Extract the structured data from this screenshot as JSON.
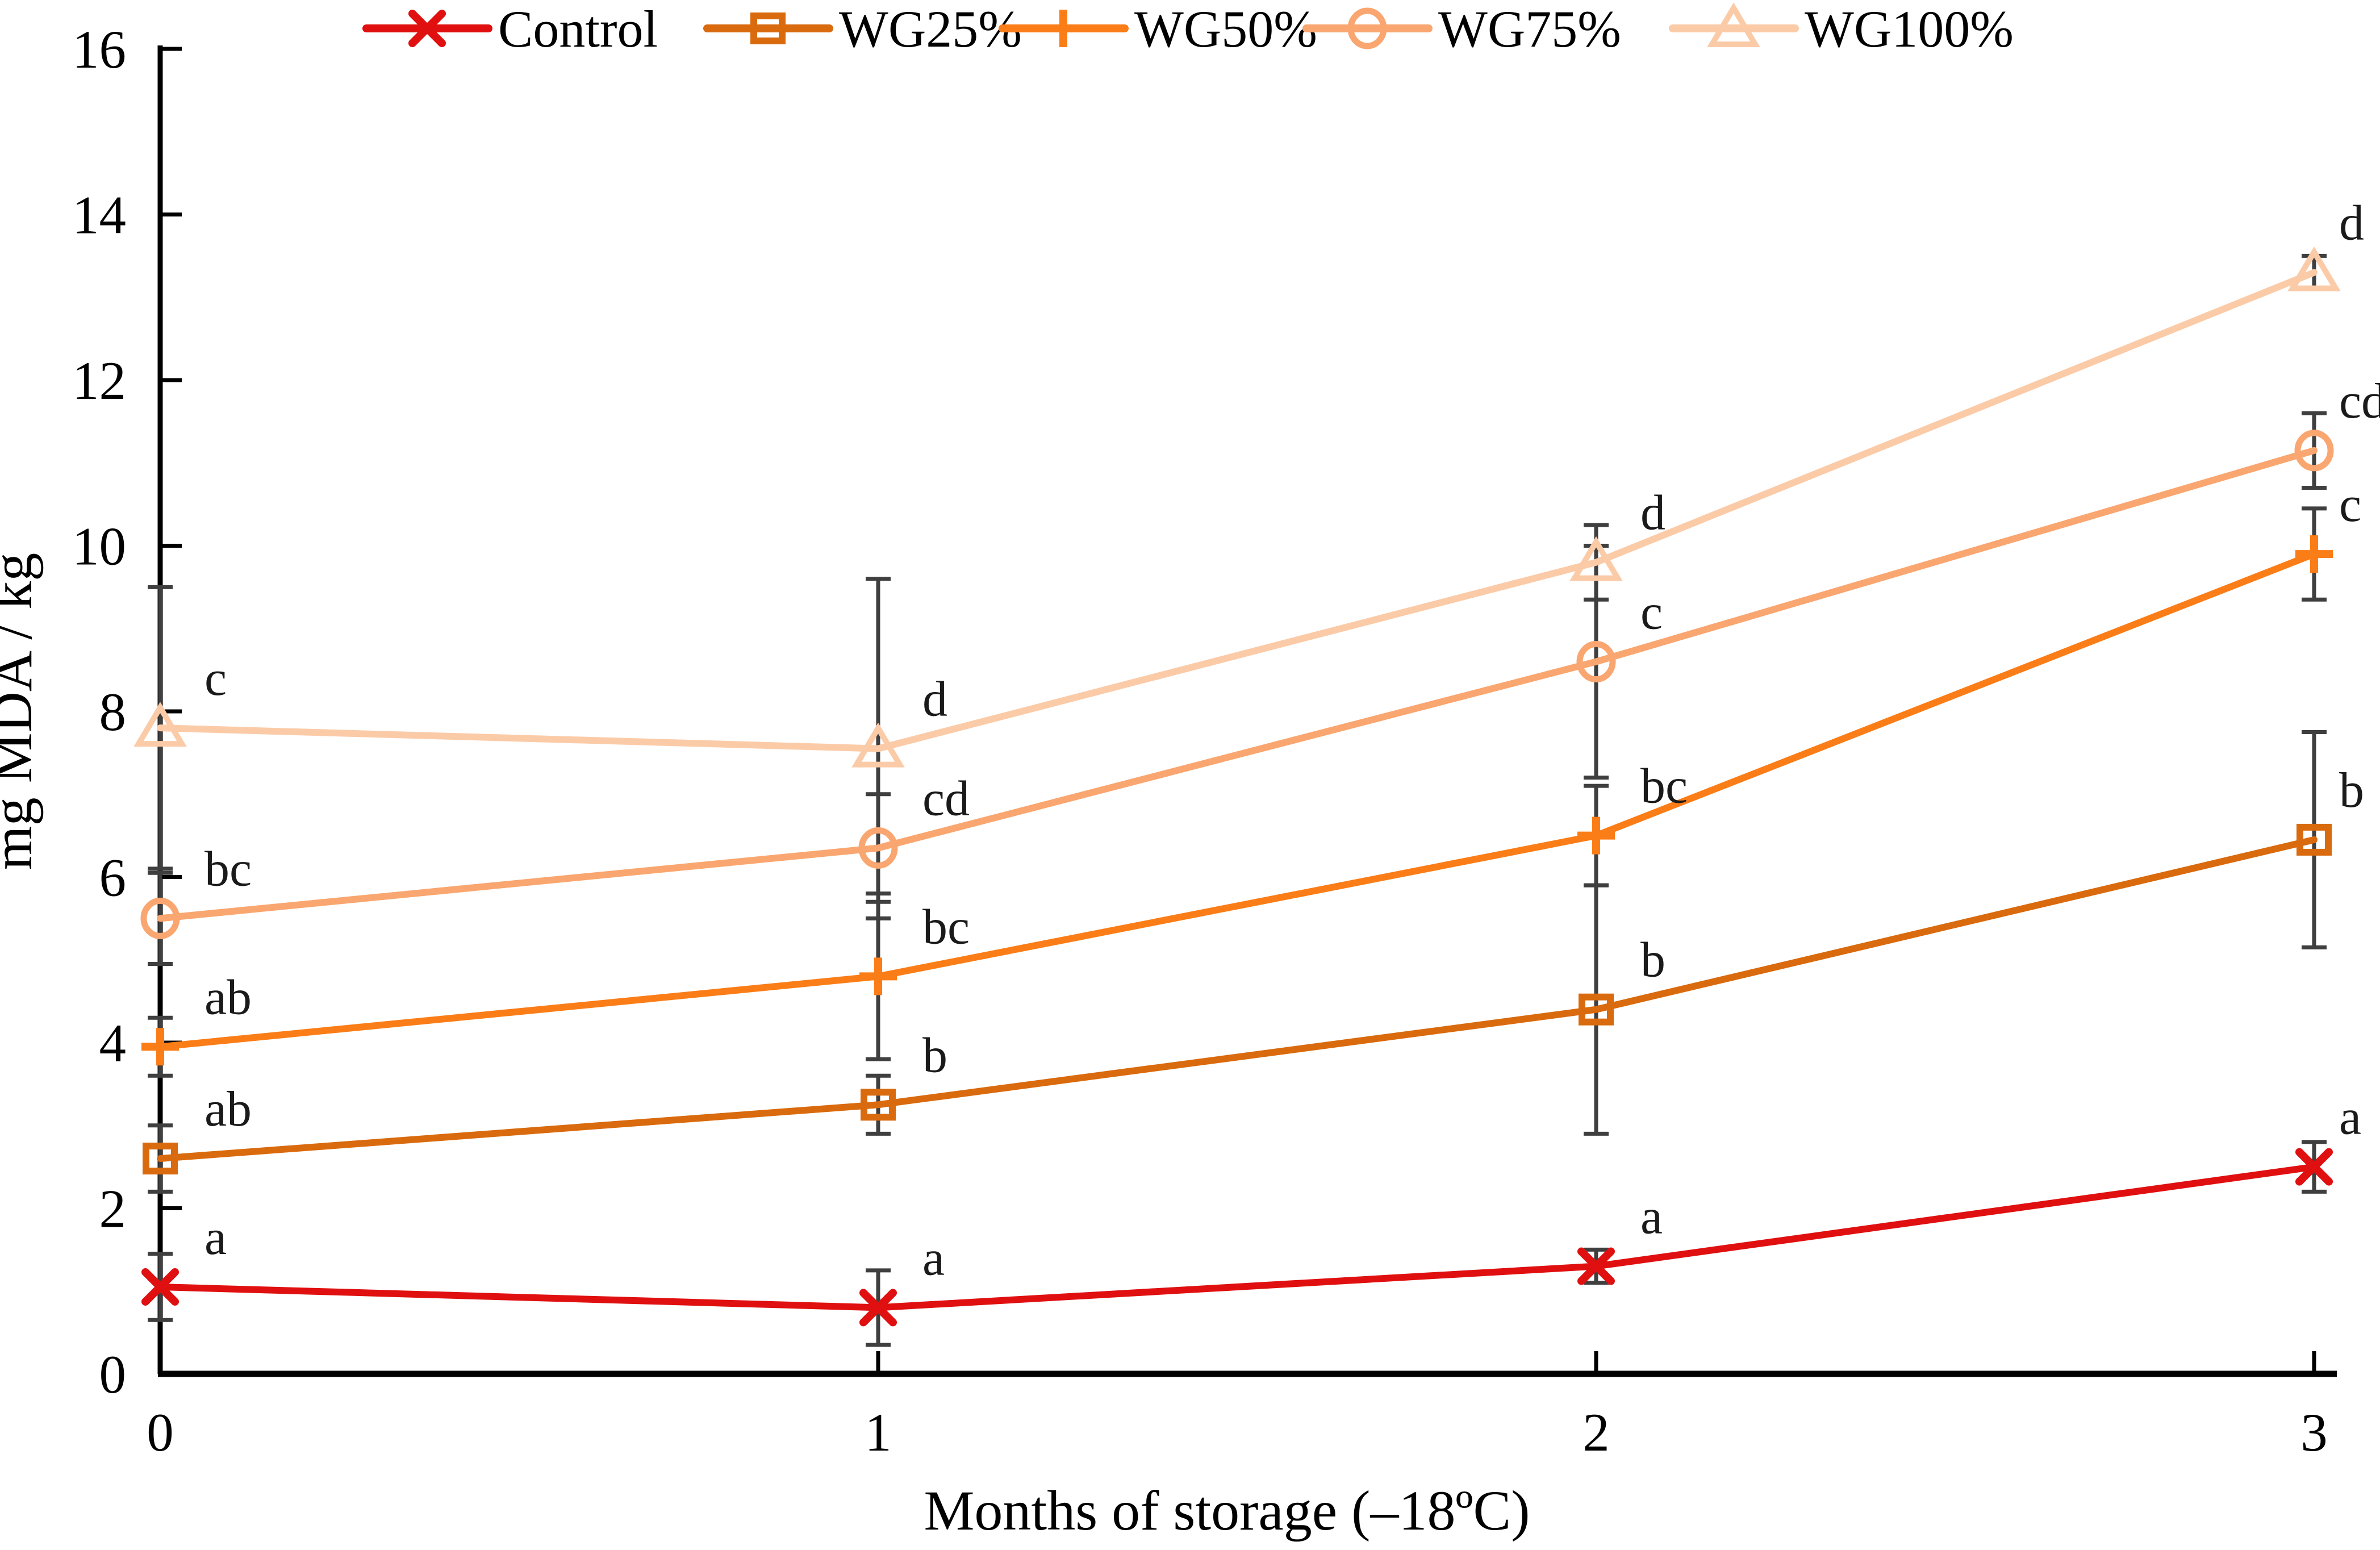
{
  "chart_data": {
    "type": "line",
    "title": "",
    "xlabel": "Months of storage (–18ºC)",
    "ylabel": "mg MDA / kg",
    "x": [
      0,
      1,
      2,
      3
    ],
    "x_tick_labels": [
      "0",
      "1",
      "2",
      "3"
    ],
    "y_ticks": [
      0,
      2,
      4,
      6,
      8,
      10,
      12,
      14,
      16
    ],
    "ylim": [
      0,
      16
    ],
    "grid": false,
    "legend_position": "top",
    "axis_color": "#000000",
    "error_bar_color": "#3F3F3F",
    "series": [
      {
        "name": "Control",
        "color": "#E01010",
        "marker": "x",
        "values": [
          1.05,
          0.8,
          1.3,
          2.5
        ],
        "errors": [
          0.4,
          0.45,
          0.2,
          0.3
        ],
        "letters": [
          "a",
          "a",
          "a",
          "a"
        ]
      },
      {
        "name": "WG25%",
        "color": "#D96A0D",
        "marker": "square",
        "values": [
          2.6,
          3.25,
          4.4,
          6.45
        ],
        "errors": [
          0.4,
          0.35,
          1.5,
          1.3
        ],
        "letters": [
          "ab",
          "b",
          "b",
          "b"
        ]
      },
      {
        "name": "WG50%",
        "color": "#FB7D17",
        "marker": "plus",
        "values": [
          3.95,
          4.8,
          6.5,
          9.9
        ],
        "errors": [
          0.35,
          1.0,
          0.6,
          0.55
        ],
        "letters": [
          "ab",
          "bc",
          "bc",
          "c"
        ]
      },
      {
        "name": "WG75%",
        "color": "#FAA670",
        "marker": "circle",
        "values": [
          5.5,
          6.35,
          8.6,
          11.15
        ],
        "errors": [
          0.55,
          0.65,
          1.4,
          0.45
        ],
        "letters": [
          "bc",
          "cd",
          "c",
          "cd"
        ]
      },
      {
        "name": "WG100%",
        "color": "#FBCBA8",
        "marker": "triangle",
        "values": [
          7.8,
          7.55,
          9.8,
          13.3
        ],
        "errors": [
          1.7,
          2.05,
          0.45,
          0.2
        ],
        "letters": [
          "c",
          "d",
          "d",
          "d"
        ]
      }
    ]
  }
}
